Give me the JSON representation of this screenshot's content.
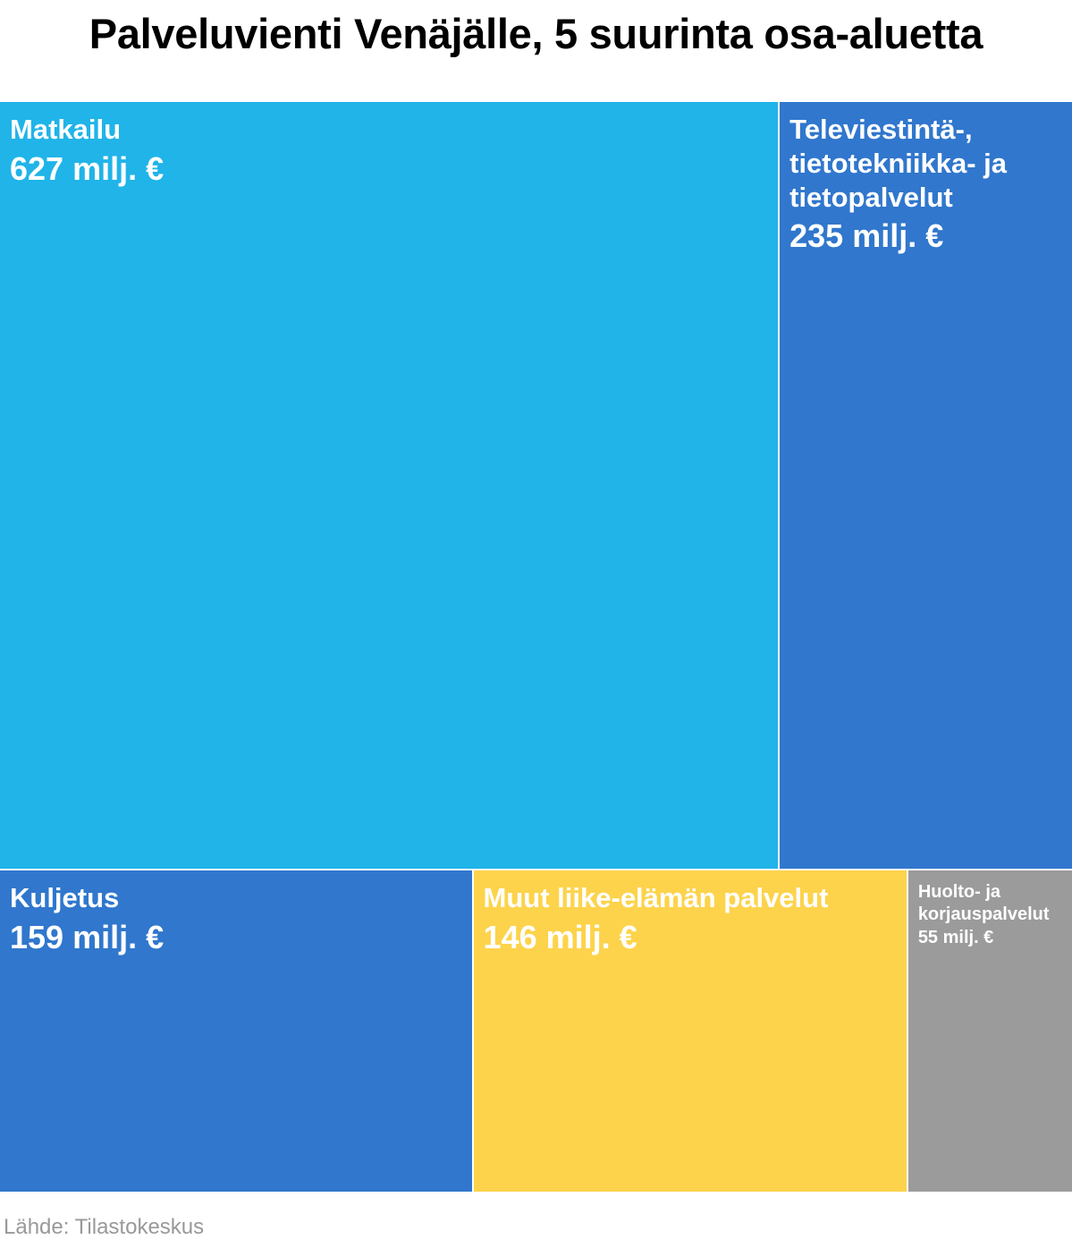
{
  "title": "Palveluvienti Venäjälle, 5 suurinta osa-aluetta",
  "source": "Lähde: Tilastokeskus",
  "chart_data": {
    "type": "treemap",
    "title": "Palveluvienti Venäjälle, 5 suurinta osa-aluetta",
    "unit": "milj. €",
    "items": [
      {
        "name": "Matkailu",
        "value": 627,
        "label": "627 milj. €",
        "color": "#20b4e8"
      },
      {
        "name": "Televiestintä-, tietotekniikka- ja tietopalvelut",
        "value": 235,
        "label": "235 milj. €",
        "color": "#3077cd"
      },
      {
        "name": "Kuljetus",
        "value": 159,
        "label": "159 milj. €",
        "color": "#3077cd"
      },
      {
        "name": "Muut liike-elämän palvelut",
        "value": 146,
        "label": "146 milj. €",
        "color": "#fdd34b"
      },
      {
        "name": "Huolto- ja korjauspalvelut",
        "value": 55,
        "label": "55 milj. €",
        "color": "#9b9b9b"
      }
    ]
  }
}
